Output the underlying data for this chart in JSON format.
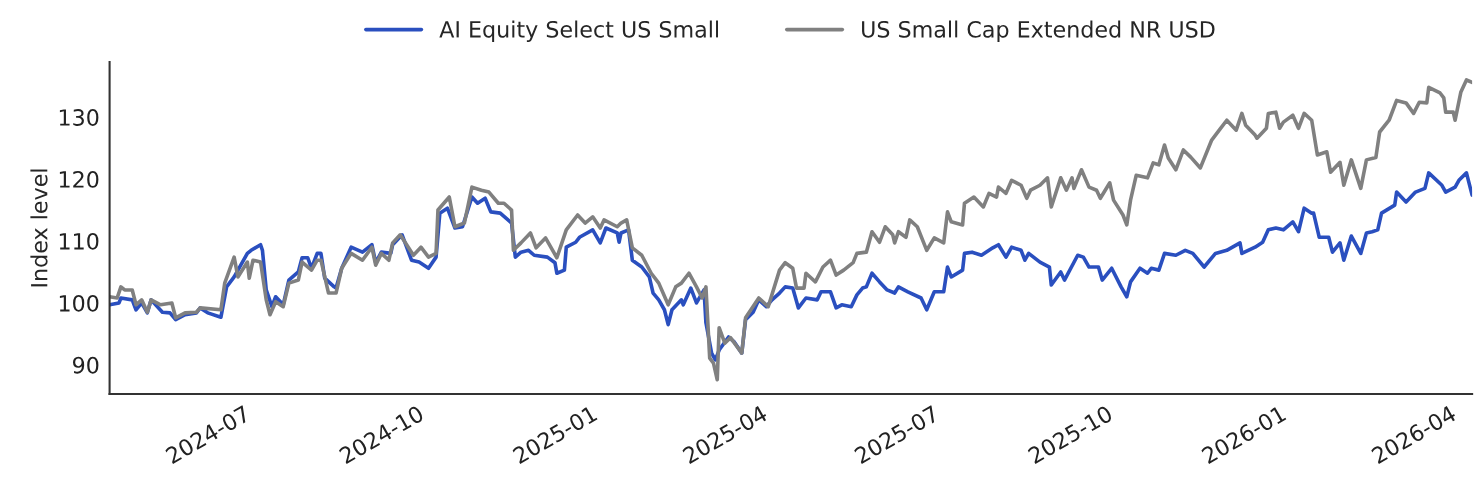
{
  "chart_data": {
    "type": "line",
    "ylabel": "Index level",
    "xlim": [
      "2024-04-21",
      "2026-04-13"
    ],
    "ylim": [
      85.3,
      138.9
    ],
    "yticks": [
      90,
      100,
      110,
      120,
      130
    ],
    "xticks": [
      {
        "value": "2024-07-01",
        "label": "2024-07"
      },
      {
        "value": "2024-10-01",
        "label": "2024-10"
      },
      {
        "value": "2025-01-01",
        "label": "2025-01"
      },
      {
        "value": "2025-04-01",
        "label": "2025-04"
      },
      {
        "value": "2025-07-01",
        "label": "2025-07"
      },
      {
        "value": "2025-10-01",
        "label": "2025-10"
      },
      {
        "value": "2026-01-01",
        "label": "2026-01"
      },
      {
        "value": "2026-04-01",
        "label": "2026-04"
      }
    ],
    "grid": false,
    "legend": "top",
    "marker": "none",
    "line_style": "solid",
    "series": [
      {
        "name": "AI Equity Select US Small",
        "color": "#2a4fbf",
        "x": [
          "2024-04-21",
          "2024-04-26",
          "2024-04-27",
          "2024-05-03",
          "2024-05-05",
          "2024-05-08",
          "2024-05-11",
          "2024-05-13",
          "2024-05-19",
          "2024-05-23",
          "2024-05-26",
          "2024-05-31",
          "2024-06-06",
          "2024-06-08",
          "2024-06-12",
          "2024-06-19",
          "2024-06-22",
          "2024-06-26",
          "2024-07-03",
          "2024-07-05",
          "2024-07-10",
          "2024-07-11",
          "2024-07-13",
          "2024-07-16",
          "2024-07-18",
          "2024-07-22",
          "2024-07-25",
          "2024-07-30",
          "2024-08-01",
          "2024-08-04",
          "2024-08-06",
          "2024-08-09",
          "2024-08-11",
          "2024-08-13",
          "2024-08-18",
          "2024-08-19",
          "2024-08-22",
          "2024-08-27",
          "2024-09-02",
          "2024-09-07",
          "2024-09-09",
          "2024-09-12",
          "2024-09-17",
          "2024-09-18",
          "2024-09-23",
          "2024-09-28",
          "2024-10-02",
          "2024-10-07",
          "2024-10-11",
          "2024-10-13",
          "2024-10-17",
          "2024-10-21",
          "2024-10-25",
          "2024-10-30",
          "2024-11-02",
          "2024-11-06",
          "2024-11-09",
          "2024-11-14",
          "2024-11-20",
          "2024-11-22",
          "2024-11-25",
          "2024-11-29",
          "2024-12-02",
          "2024-12-09",
          "2024-12-13",
          "2024-12-14",
          "2024-12-18",
          "2024-12-19",
          "2024-12-24",
          "2024-12-26",
          "2025-01-02",
          "2025-01-06",
          "2025-01-09",
          "2025-01-15",
          "2025-01-16",
          "2025-01-17",
          "2025-01-21",
          "2025-01-23",
          "2025-01-28",
          "2025-02-01",
          "2025-02-03",
          "2025-02-06",
          "2025-02-09",
          "2025-02-11",
          "2025-02-13",
          "2025-02-18",
          "2025-02-19",
          "2025-02-23",
          "2025-02-26",
          "2025-03-02",
          "2025-03-03",
          "2025-03-06",
          "2025-03-08",
          "2025-03-10",
          "2025-03-15",
          "2025-03-18",
          "2025-03-22",
          "2025-03-24",
          "2025-03-28",
          "2025-03-31",
          "2025-04-04",
          "2025-04-07",
          "2025-04-11",
          "2025-04-14",
          "2025-04-18",
          "2025-04-21",
          "2025-04-25",
          "2025-05-01",
          "2025-05-03",
          "2025-05-08",
          "2025-05-11",
          "2025-05-14",
          "2025-05-19",
          "2025-05-22",
          "2025-05-25",
          "2025-05-27",
          "2025-05-30",
          "2025-06-03",
          "2025-06-07",
          "2025-06-11",
          "2025-06-13",
          "2025-06-18",
          "2025-06-25",
          "2025-06-28",
          "2025-07-02",
          "2025-07-07",
          "2025-07-09",
          "2025-07-11",
          "2025-07-17",
          "2025-07-18",
          "2025-07-22",
          "2025-07-27",
          "2025-08-02",
          "2025-08-05",
          "2025-08-09",
          "2025-08-12",
          "2025-08-17",
          "2025-08-19",
          "2025-08-21",
          "2025-08-27",
          "2025-09-01",
          "2025-09-02",
          "2025-09-07",
          "2025-09-09",
          "2025-09-16",
          "2025-09-19",
          "2025-09-22",
          "2025-09-27",
          "2025-09-29",
          "2025-10-04",
          "2025-10-09",
          "2025-10-12",
          "2025-10-14",
          "2025-10-19",
          "2025-10-23",
          "2025-10-25",
          "2025-10-29",
          "2025-11-01",
          "2025-11-07",
          "2025-11-12",
          "2025-11-16",
          "2025-11-22",
          "2025-11-28",
          "2025-12-04",
          "2025-12-11",
          "2025-12-12",
          "2025-12-19",
          "2025-12-23",
          "2025-12-26",
          "2025-12-30",
          "2026-01-03",
          "2026-01-08",
          "2026-01-11",
          "2026-01-14",
          "2026-01-18",
          "2026-01-19",
          "2026-01-22",
          "2026-01-27",
          "2026-01-29",
          "2026-02-02",
          "2026-02-04",
          "2026-02-08",
          "2026-02-13",
          "2026-02-16",
          "2026-02-19",
          "2026-02-22",
          "2026-02-24",
          "2026-03-03",
          "2026-03-04",
          "2026-03-09",
          "2026-03-14",
          "2026-03-19",
          "2026-03-21",
          "2026-03-28",
          "2026-03-30",
          "2026-04-04",
          "2026-04-06",
          "2026-04-10",
          "2026-04-13"
        ],
        "values": [
          99.7,
          100,
          100.8,
          100.5,
          98.9,
          100,
          98.4,
          100.5,
          98.5,
          98.4,
          97.3,
          98.1,
          98.4,
          99.2,
          98.4,
          97.7,
          102.6,
          104.2,
          108,
          108.5,
          109.4,
          108.5,
          102.1,
          99.4,
          101,
          99.7,
          103.7,
          105,
          107.3,
          107.3,
          105.6,
          108,
          108,
          104,
          102.6,
          102.4,
          105.6,
          109,
          108.2,
          109.4,
          106.5,
          108.2,
          108,
          109.4,
          111,
          106.9,
          106.6,
          105.6,
          107.4,
          114.5,
          115.3,
          112.1,
          112.3,
          117.1,
          116.1,
          116.9,
          114.7,
          114.5,
          112.9,
          107.4,
          108.2,
          108.5,
          107.7,
          107.4,
          106.5,
          104.8,
          105.3,
          109,
          109.8,
          110.6,
          111.8,
          109.7,
          112.1,
          111.3,
          109.8,
          111.3,
          111.8,
          106.9,
          105.8,
          104.2,
          101.6,
          100.5,
          98.9,
          96.5,
          98.9,
          100.5,
          99.7,
          102.4,
          100,
          102.1,
          96.8,
          91.9,
          90.8,
          92.4,
          94.5,
          93.7,
          91.9,
          97.3,
          98.5,
          100.5,
          99.4,
          100.5,
          101.6,
          102.6,
          102.4,
          99.2,
          100.8,
          100.5,
          101.8,
          101.8,
          99.2,
          99.7,
          99.4,
          101.3,
          102.4,
          102.6,
          104.8,
          103.4,
          102.1,
          101.6,
          102.6,
          101.8,
          100.8,
          98.9,
          101.8,
          101.8,
          105.8,
          104.2,
          105.3,
          108,
          108.2,
          107.7,
          108.9,
          109.4,
          107.4,
          109,
          108.5,
          106.9,
          108,
          106.6,
          105.8,
          102.9,
          105,
          103.7,
          107.7,
          107.4,
          105.8,
          105.8,
          103.7,
          105.6,
          102.6,
          101,
          103.4,
          105.6,
          104.8,
          105.6,
          105.3,
          108,
          107.7,
          108.5,
          108,
          105.8,
          108,
          108.5,
          109.7,
          108,
          109,
          109.8,
          111.8,
          112.1,
          111.8,
          113.1,
          111.5,
          115.3,
          114.5,
          114.5,
          110.6,
          110.6,
          108.2,
          109.7,
          106.9,
          110.8,
          108,
          111.3,
          111.5,
          111.8,
          114.5,
          115.8,
          117.9,
          116.3,
          117.9,
          118.5,
          121,
          119,
          117.9,
          118.7,
          119.8,
          121,
          117.4
        ]
      },
      {
        "name": "US Small Cap Extended NR USD",
        "color": "#808080",
        "x": [
          "2024-04-21",
          "2024-04-25",
          "2024-04-27",
          "2024-04-29",
          "2024-05-03",
          "2024-05-05",
          "2024-05-08",
          "2024-05-11",
          "2024-05-13",
          "2024-05-18",
          "2024-05-24",
          "2024-05-26",
          "2024-05-31",
          "2024-06-06",
          "2024-06-08",
          "2024-06-19",
          "2024-06-21",
          "2024-06-26",
          "2024-06-28",
          "2024-07-03",
          "2024-07-04",
          "2024-07-06",
          "2024-07-10",
          "2024-07-13",
          "2024-07-15",
          "2024-07-18",
          "2024-07-22",
          "2024-07-25",
          "2024-07-30",
          "2024-08-01",
          "2024-08-06",
          "2024-08-09",
          "2024-08-11",
          "2024-08-15",
          "2024-08-19",
          "2024-08-22",
          "2024-08-27",
          "2024-09-02",
          "2024-09-07",
          "2024-09-09",
          "2024-09-12",
          "2024-09-16",
          "2024-09-18",
          "2024-09-22",
          "2024-09-29",
          "2024-10-03",
          "2024-10-07",
          "2024-10-11",
          "2024-10-12",
          "2024-10-18",
          "2024-10-21",
          "2024-10-26",
          "2024-10-30",
          "2024-11-04",
          "2024-11-08",
          "2024-11-13",
          "2024-11-16",
          "2024-11-20",
          "2024-11-21",
          "2024-11-25",
          "2024-11-30",
          "2024-12-03",
          "2024-12-08",
          "2024-12-14",
          "2024-12-19",
          "2024-12-25",
          "2024-12-29",
          "2025-01-02",
          "2025-01-06",
          "2025-01-08",
          "2025-01-15",
          "2025-01-17",
          "2025-01-20",
          "2025-01-23",
          "2025-01-28",
          "2025-02-02",
          "2025-02-06",
          "2025-02-11",
          "2025-02-15",
          "2025-02-18",
          "2025-02-22",
          "2025-02-26",
          "2025-03-01",
          "2025-03-03",
          "2025-03-05",
          "2025-03-07",
          "2025-03-09",
          "2025-03-10",
          "2025-03-13",
          "2025-03-16",
          "2025-03-22",
          "2025-03-24",
          "2025-03-31",
          "2025-04-05",
          "2025-04-11",
          "2025-04-14",
          "2025-04-18",
          "2025-04-20",
          "2025-04-24",
          "2025-04-25",
          "2025-04-30",
          "2025-05-04",
          "2025-05-08",
          "2025-05-11",
          "2025-05-15",
          "2025-05-20",
          "2025-05-22",
          "2025-05-27",
          "2025-05-30",
          "2025-06-03",
          "2025-06-06",
          "2025-06-10",
          "2025-06-11",
          "2025-06-13",
          "2025-06-17",
          "2025-06-19",
          "2025-06-23",
          "2025-06-28",
          "2025-07-02",
          "2025-07-07",
          "2025-07-09",
          "2025-07-11",
          "2025-07-17",
          "2025-07-18",
          "2025-07-23",
          "2025-07-28",
          "2025-07-31",
          "2025-08-04",
          "2025-08-05",
          "2025-08-09",
          "2025-08-12",
          "2025-08-17",
          "2025-08-20",
          "2025-08-22",
          "2025-08-27",
          "2025-08-31",
          "2025-09-02",
          "2025-09-07",
          "2025-09-10",
          "2025-09-13",
          "2025-09-14",
          "2025-09-18",
          "2025-09-22",
          "2025-09-26",
          "2025-09-28",
          "2025-10-03",
          "2025-10-05",
          "2025-10-10",
          "2025-10-12",
          "2025-10-14",
          "2025-10-17",
          "2025-10-23",
          "2025-10-26",
          "2025-10-29",
          "2025-11-01",
          "2025-11-03",
          "2025-11-07",
          "2025-11-11",
          "2025-11-15",
          "2025-11-20",
          "2025-11-26",
          "2025-11-30",
          "2025-12-04",
          "2025-12-09",
          "2025-12-12",
          "2025-12-14",
          "2025-12-19",
          "2025-12-20",
          "2025-12-25",
          "2025-12-26",
          "2025-12-30",
          "2026-01-01",
          "2026-01-03",
          "2026-01-08",
          "2026-01-11",
          "2026-01-14",
          "2026-01-18",
          "2026-01-21",
          "2026-01-26",
          "2026-01-28",
          "2026-02-02",
          "2026-02-04",
          "2026-02-08",
          "2026-02-13",
          "2026-02-16",
          "2026-02-21",
          "2026-02-23",
          "2026-02-28",
          "2026-03-04",
          "2026-03-09",
          "2026-03-13",
          "2026-03-16",
          "2026-03-20",
          "2026-03-21",
          "2026-03-27",
          "2026-03-29",
          "2026-03-30",
          "2026-04-03",
          "2026-04-04",
          "2026-04-07",
          "2026-04-10",
          "2026-04-13"
        ],
        "values": [
          101,
          100.8,
          102.6,
          102.1,
          102.1,
          99.7,
          100.5,
          98.5,
          100.5,
          99.7,
          100,
          97.6,
          98.4,
          98.5,
          99.2,
          98.9,
          103.2,
          107.4,
          104.2,
          106.6,
          104,
          106.9,
          106.6,
          100.5,
          98.1,
          100.2,
          99.4,
          103.2,
          103.7,
          106.6,
          105.3,
          106.9,
          106.9,
          101.6,
          101.6,
          105.6,
          108,
          106.9,
          109,
          106.1,
          108,
          106.9,
          109.7,
          111,
          107.7,
          109,
          107.4,
          108,
          115,
          117.1,
          112.3,
          112.9,
          118.7,
          118.2,
          117.9,
          116.1,
          116.1,
          115,
          108.5,
          109.7,
          111.3,
          108.9,
          110.5,
          107.3,
          111.8,
          114.2,
          112.9,
          113.9,
          112.1,
          113.4,
          112.3,
          112.9,
          113.4,
          108.9,
          107.7,
          104.8,
          103.2,
          99.7,
          102.6,
          103.2,
          104.8,
          102.6,
          100.8,
          102.6,
          91.1,
          90.3,
          87.6,
          96,
          93.5,
          94.4,
          91.9,
          97.6,
          100.8,
          99.4,
          105.3,
          106.5,
          105.6,
          102.4,
          102.4,
          104.8,
          103.4,
          105.8,
          106.9,
          104.5,
          105.3,
          106.5,
          108,
          108.2,
          111.5,
          109.8,
          112.3,
          111,
          109.7,
          111.5,
          110.6,
          113.4,
          112.3,
          108.5,
          110.5,
          109.7,
          114.7,
          113.1,
          112.6,
          116.1,
          117.1,
          115.5,
          117.7,
          117.1,
          118.7,
          117.7,
          119.8,
          119,
          116.9,
          118.2,
          119,
          120.2,
          115.5,
          120.2,
          118.2,
          120.2,
          118.5,
          121.5,
          118.7,
          118.2,
          116.9,
          119.4,
          116.6,
          114.2,
          112.6,
          116.6,
          120.6,
          120.2,
          122.6,
          122.3,
          125.5,
          123.4,
          121.5,
          124.7,
          123.5,
          121.8,
          126.3,
          127.9,
          129.5,
          127.9,
          130.6,
          128.7,
          127.1,
          126.6,
          128.2,
          130.6,
          130.8,
          128.2,
          129.2,
          130.3,
          128.2,
          130.6,
          129.5,
          123.9,
          124.4,
          121.1,
          122.7,
          119,
          123.1,
          118.5,
          123.1,
          123.5,
          127.6,
          129.5,
          132.7,
          132.3,
          130.6,
          132.4,
          132.3,
          134.8,
          133.9,
          133.1,
          130.8,
          130.8,
          129.5,
          134,
          136,
          135.6
        ]
      }
    ]
  }
}
